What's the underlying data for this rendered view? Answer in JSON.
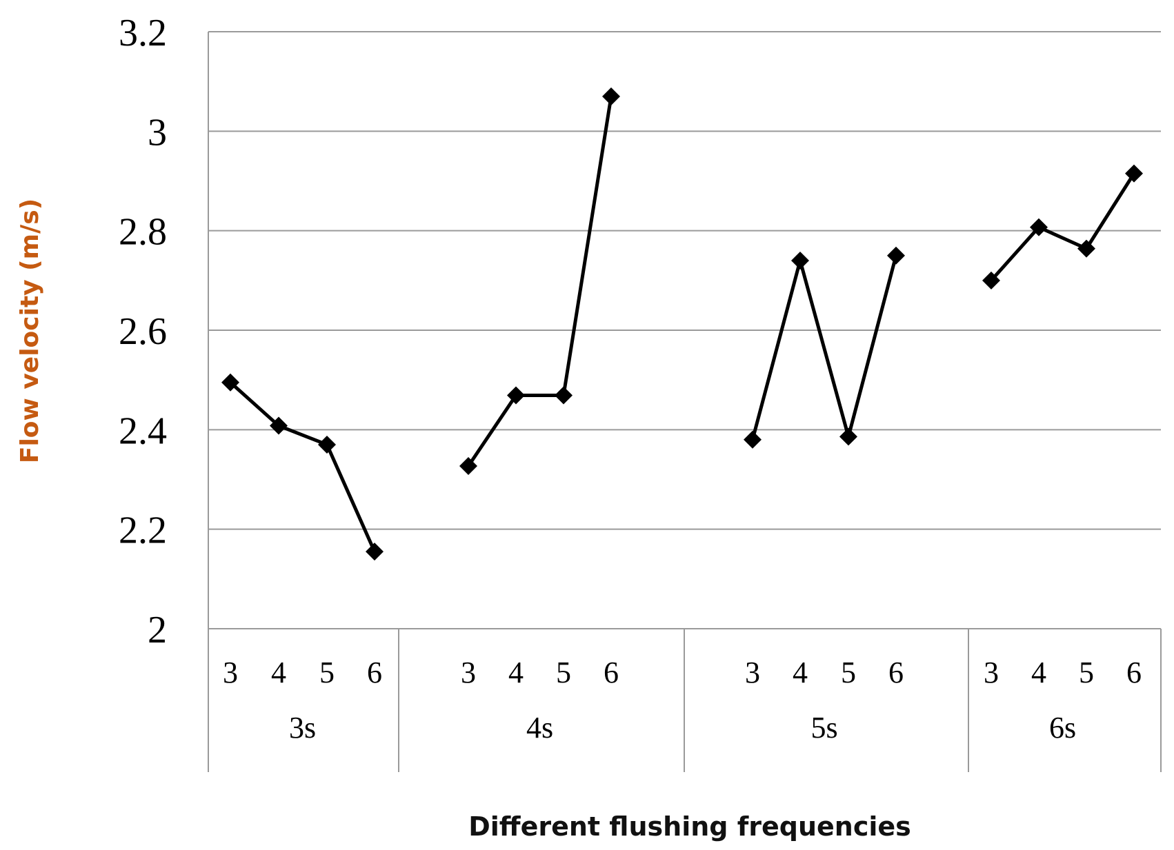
{
  "chart_data": {
    "type": "line",
    "xlabel": "Different flushing frequencies",
    "ylabel": "Flow velocity (m/s)",
    "ylim": [
      2,
      3.2
    ],
    "yticks": [
      "2",
      "2.2",
      "2.4",
      "2.6",
      "2.8",
      "3",
      "3.2"
    ],
    "grid": true,
    "groups": [
      {
        "label": "3s",
        "x": [
          "3",
          "4",
          "5",
          "6"
        ],
        "values": [
          2.495,
          2.408,
          2.37,
          2.155
        ]
      },
      {
        "label": "4s",
        "x": [
          "3",
          "4",
          "5",
          "6"
        ],
        "values": [
          2.327,
          2.469,
          2.469,
          3.07
        ]
      },
      {
        "label": "5s",
        "x": [
          "3",
          "4",
          "5",
          "6"
        ],
        "values": [
          2.38,
          2.74,
          2.386,
          2.75
        ]
      },
      {
        "label": "6s",
        "x": [
          "3",
          "4",
          "5",
          "6"
        ],
        "values": [
          2.7,
          2.807,
          2.764,
          2.915
        ]
      }
    ],
    "colors": {
      "line": "#000000",
      "grid": "#9a9a9a",
      "ylabel": "#c55a11"
    }
  }
}
